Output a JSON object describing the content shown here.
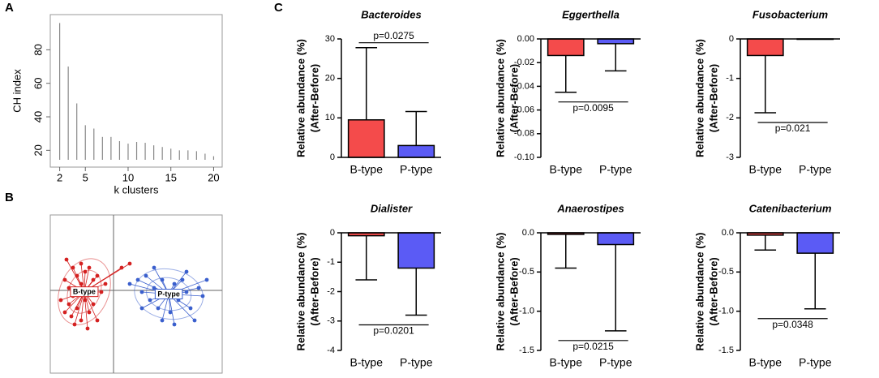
{
  "panel_labels": [
    "A",
    "B",
    "C"
  ],
  "chart_data": [
    {
      "type": "stem",
      "xlabel": "k clusters",
      "ylabel": "CH index",
      "color": "#888888",
      "x": [
        2,
        3,
        4,
        5,
        6,
        7,
        8,
        9,
        10,
        11,
        12,
        13,
        14,
        15,
        16,
        17,
        18,
        19,
        20
      ],
      "values": [
        96,
        70,
        48,
        35,
        33,
        28,
        28,
        25.5,
        24,
        25,
        24.5,
        23,
        22,
        21,
        20,
        20,
        19.5,
        18,
        16.5
      ],
      "xlim": [
        0.9,
        21
      ],
      "ylim": [
        10,
        101
      ],
      "xticks": [
        2,
        5,
        10,
        15,
        20
      ],
      "xtick_colors": [
        "#e8202a",
        "#000000",
        "#000000",
        "#000000",
        "#000000"
      ],
      "yticks": [
        20,
        40,
        60,
        80
      ]
    },
    {
      "type": "scatter",
      "xlim": [
        -0.78,
        1.34
      ],
      "ylim": [
        -1.02,
        0.93
      ],
      "crosshair": true,
      "series": [
        {
          "name": "B-type",
          "color": "#d42020",
          "x": [
            -0.6,
            -0.55,
            -0.5,
            -0.45,
            -0.4,
            -0.35,
            -0.3,
            -0.25,
            -0.2,
            -0.4,
            -0.5,
            -0.55,
            -0.6,
            -0.52,
            -0.45,
            -0.35,
            -0.3,
            -0.25,
            -0.4,
            -0.48,
            -0.15,
            -0.1,
            -0.65,
            -0.2,
            -0.32,
            0.1,
            0.2,
            -0.58
          ],
          "values": [
            0.13,
            0.03,
            0.28,
            0.18,
            0.33,
            0.23,
            0.28,
            0.13,
            0.18,
            0.08,
            -0.07,
            -0.17,
            -0.27,
            -0.32,
            -0.22,
            -0.12,
            -0.27,
            -0.17,
            -0.37,
            -0.42,
            -0.02,
            0.08,
            -0.12,
            -0.37,
            -0.47,
            0.28,
            0.33,
            0.38
          ]
        },
        {
          "name": "P-type",
          "color": "#3a5fcd",
          "x": [
            0.2,
            0.3,
            0.35,
            0.4,
            0.45,
            0.5,
            0.55,
            0.6,
            0.65,
            0.7,
            0.75,
            0.8,
            0.85,
            0.9,
            0.95,
            1.0,
            1.05,
            1.1,
            0.6,
            0.75,
            0.9,
            0.5,
            1.15,
            0.35
          ],
          "values": [
            0.08,
            0.13,
            -0.02,
            0.18,
            -0.12,
            0.03,
            -0.22,
            0.13,
            -0.07,
            -0.27,
            0.08,
            -0.12,
            0.13,
            -0.02,
            -0.22,
            -0.37,
            0.03,
            -0.07,
            -0.37,
            -0.42,
            0.23,
            0.28,
            0.13,
            -0.22
          ]
        }
      ]
    },
    {
      "type": "bar",
      "title": "Bacteroides",
      "ylabel": [
        "Relative abundance (%)",
        "(After-Before)"
      ],
      "categories": [
        "B-type",
        "P-type"
      ],
      "values": [
        9.5,
        3.0
      ],
      "errors": [
        18.3,
        8.6
      ],
      "colors": [
        "#f44b4b",
        "#5b5bf5"
      ],
      "ylim": [
        0,
        30
      ],
      "yticks": [
        0,
        10,
        20,
        30
      ],
      "annotation": "p=0.0275"
    },
    {
      "type": "bar",
      "title": "Eggerthella",
      "ylabel": [
        "Relative abundance (%)",
        "(After-Before)"
      ],
      "categories": [
        "B-type",
        "P-type"
      ],
      "values": [
        -0.014,
        -0.004
      ],
      "errors": [
        0.031,
        0.023
      ],
      "colors": [
        "#f44b4b",
        "#5b5bf5"
      ],
      "ylim": [
        -0.1,
        0
      ],
      "yticks": [
        {
          "value": 0,
          "label": "0.00"
        },
        -0.02,
        -0.04,
        -0.06,
        -0.08,
        {
          "value": -0.1,
          "label": "-0.10"
        }
      ],
      "annotation": "p=0.0095"
    },
    {
      "type": "bar",
      "title": "Fusobacterium",
      "ylabel": [
        "Relative abundance (%)",
        "(After-Before)"
      ],
      "categories": [
        "B-type",
        "P-type"
      ],
      "values": [
        -0.42,
        -0.01
      ],
      "errors": [
        1.45,
        0
      ],
      "colors": [
        "#f44b4b",
        "#5b5bf5"
      ],
      "ylim": [
        -3,
        0
      ],
      "yticks": [
        0,
        -1,
        -2,
        -3
      ],
      "annotation": "p=0.021"
    },
    {
      "type": "bar",
      "title": "Dialister",
      "ylabel": [
        "Relative abundance (%)",
        "(After-Before)"
      ],
      "categories": [
        "B-type",
        "P-type"
      ],
      "values": [
        -0.1,
        -1.2
      ],
      "errors": [
        1.5,
        1.6
      ],
      "colors": [
        "#f44b4b",
        "#5b5bf5"
      ],
      "ylim": [
        -4,
        0
      ],
      "yticks": [
        0,
        -1,
        -2,
        -3,
        -4
      ],
      "annotation": "p=0.0201"
    },
    {
      "type": "bar",
      "title": "Anaerostipes",
      "ylabel": [
        "Relative abundance (%)",
        "(After-Before)"
      ],
      "categories": [
        "B-type",
        "P-type"
      ],
      "values": [
        -0.02,
        -0.15
      ],
      "errors": [
        0.43,
        1.1
      ],
      "colors": [
        "#f44b4b",
        "#5b5bf5"
      ],
      "ylim": [
        -1.5,
        0
      ],
      "yticks": [
        {
          "value": 0,
          "label": "0.0"
        },
        -0.5,
        {
          "value": -1,
          "label": "-1.0"
        },
        -1.5
      ],
      "annotation": "p=0.0215"
    },
    {
      "type": "bar",
      "title": "Catenibacterium",
      "ylabel": [
        "Relative abundance (%)",
        "(After-Before)"
      ],
      "categories": [
        "B-type",
        "P-type"
      ],
      "values": [
        -0.03,
        -0.26
      ],
      "errors": [
        0.19,
        0.71
      ],
      "colors": [
        "#f44b4b",
        "#5b5bf5"
      ],
      "ylim": [
        -1.5,
        0
      ],
      "yticks": [
        {
          "value": 0,
          "label": "0.0"
        },
        -0.5,
        {
          "value": -1,
          "label": "-1.0"
        },
        -1.5
      ],
      "annotation": "p=0.0348"
    }
  ]
}
